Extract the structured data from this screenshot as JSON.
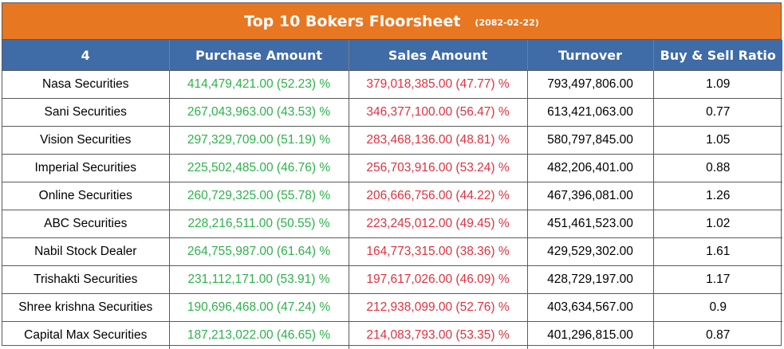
{
  "title": "Top 10 Bokers Floorsheet",
  "date": "(2082-02-22)",
  "columns": [
    "4",
    "Purchase Amount",
    "Sales Amount",
    "Turnover",
    "Buy & Sell Ratio"
  ],
  "colors": {
    "title_bg": "#e87722",
    "header_bg": "#3f6ba6",
    "buy": "#2db24a",
    "sell": "#e0313f"
  },
  "rows": [
    {
      "broker": "Nasa Securities",
      "purchase": "414,479,421.00 (52.23) %",
      "sales": "379,018,385.00 (47.77) %",
      "turnover": "793,497,806.00",
      "ratio": "1.09"
    },
    {
      "broker": "Sani Securities",
      "purchase": "267,043,963.00 (43.53) %",
      "sales": "346,377,100.00 (56.47) %",
      "turnover": "613,421,063.00",
      "ratio": "0.77"
    },
    {
      "broker": "Vision Securities",
      "purchase": "297,329,709.00 (51.19) %",
      "sales": "283,468,136.00 (48.81) %",
      "turnover": "580,797,845.00",
      "ratio": "1.05"
    },
    {
      "broker": "Imperial Securities",
      "purchase": "225,502,485.00 (46.76) %",
      "sales": "256,703,916.00 (53.24) %",
      "turnover": "482,206,401.00",
      "ratio": "0.88"
    },
    {
      "broker": "Online Securities",
      "purchase": "260,729,325.00 (55.78) %",
      "sales": "206,666,756.00 (44.22) %",
      "turnover": "467,396,081.00",
      "ratio": "1.26"
    },
    {
      "broker": "ABC Securities",
      "purchase": "228,216,511.00 (50.55) %",
      "sales": "223,245,012.00 (49.45) %",
      "turnover": "451,461,523.00",
      "ratio": "1.02"
    },
    {
      "broker": "Nabil Stock  Dealer",
      "purchase": "264,755,987.00 (61.64) %",
      "sales": "164,773,315.00 (38.36) %",
      "turnover": "429,529,302.00",
      "ratio": "1.61"
    },
    {
      "broker": "Trishakti Securities",
      "purchase": "231,112,171.00 (53.91) %",
      "sales": "197,617,026.00 (46.09) %",
      "turnover": "428,729,197.00",
      "ratio": "1.17"
    },
    {
      "broker": "Shree krishna Securities",
      "purchase": "190,696,468.00 (47.24) %",
      "sales": "212,938,099.00 (52.76) %",
      "turnover": "403,634,567.00",
      "ratio": "0.9"
    },
    {
      "broker": "Capital Max Securities",
      "purchase": "187,213,022.00 (46.65) %",
      "sales": "214,083,793.00 (53.35) %",
      "turnover": "401,296,815.00",
      "ratio": "0.87"
    }
  ]
}
